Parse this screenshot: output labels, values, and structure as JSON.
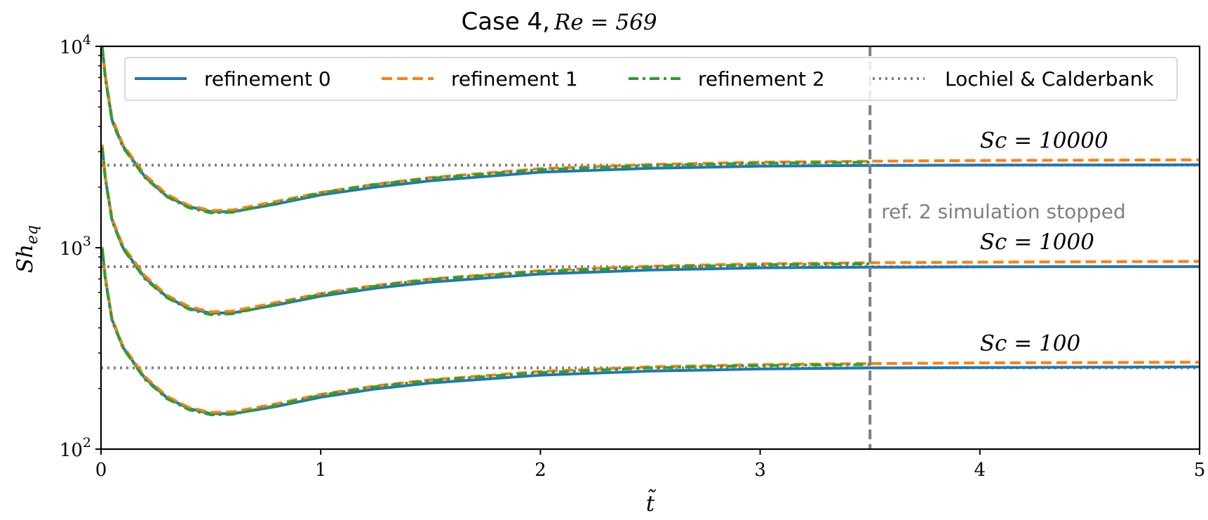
{
  "chart_data": {
    "type": "line",
    "title": "Case 4, Re = 569",
    "title_prefix": "Case 4, ",
    "title_math": "Re = 569",
    "xlabel": "t̃",
    "ylabel": "Sh_eq",
    "ylabel_main": "Sh",
    "ylabel_sub": "eq",
    "xlim": [
      0,
      5
    ],
    "ylim": [
      100,
      10000
    ],
    "yscale": "log",
    "grid": false,
    "legend_position": "top",
    "x_ticks": [
      {
        "value": 0,
        "label": "0"
      },
      {
        "value": 1,
        "label": "1"
      },
      {
        "value": 2,
        "label": "2"
      },
      {
        "value": 3,
        "label": "3"
      },
      {
        "value": 4,
        "label": "4"
      },
      {
        "value": 5,
        "label": "5"
      }
    ],
    "y_ticks": [
      {
        "value": 100,
        "base": "10",
        "exp": "2"
      },
      {
        "value": 1000,
        "base": "10",
        "exp": "3"
      },
      {
        "value": 10000,
        "base": "10",
        "exp": "4"
      }
    ],
    "series": [
      {
        "name": "refinement 0",
        "color": "#1f77b4",
        "style": "solid"
      },
      {
        "name": "refinement 1",
        "color": "#ff7f0e",
        "style": "dashed"
      },
      {
        "name": "refinement 2",
        "color": "#2ca02c",
        "style": "dashdot"
      },
      {
        "name": "Lochiel & Calderbank",
        "color": "#7f7f7f",
        "style": "dotted"
      }
    ],
    "groups": [
      {
        "label": "Sc = 10000",
        "reference": 2570,
        "x": [
          0.005,
          0.02,
          0.05,
          0.1,
          0.2,
          0.3,
          0.4,
          0.5,
          0.6,
          0.8,
          1.0,
          1.25,
          1.5,
          2.0,
          2.5,
          3.0,
          3.5,
          4.0,
          4.5,
          5.0
        ],
        "refinement_0": [
          10000,
          7000,
          4300,
          3200,
          2250,
          1800,
          1600,
          1510,
          1510,
          1650,
          1830,
          2000,
          2150,
          2370,
          2480,
          2540,
          2560,
          2570,
          2575,
          2580
        ],
        "refinement_1": [
          10000,
          7100,
          4400,
          3250,
          2300,
          1840,
          1620,
          1530,
          1540,
          1700,
          1880,
          2070,
          2230,
          2470,
          2590,
          2660,
          2690,
          2710,
          2720,
          2730
        ],
        "refinement_2": [
          10000,
          6900,
          4250,
          3150,
          2230,
          1790,
          1580,
          1490,
          1500,
          1670,
          1870,
          2060,
          2210,
          2440,
          2560,
          2630,
          2660
        ]
      },
      {
        "label": "Sc = 1000",
        "reference": 805,
        "x": [
          0.005,
          0.02,
          0.05,
          0.1,
          0.2,
          0.3,
          0.4,
          0.5,
          0.6,
          0.8,
          1.0,
          1.25,
          1.5,
          2.0,
          2.5,
          3.0,
          3.5,
          4.0,
          4.5,
          5.0
        ],
        "refinement_0": [
          3200,
          2200,
          1380,
          1000,
          710,
          570,
          500,
          473,
          475,
          520,
          575,
          630,
          675,
          740,
          775,
          795,
          800,
          803,
          805,
          806
        ],
        "refinement_1": [
          3250,
          2230,
          1400,
          1020,
          725,
          580,
          510,
          480,
          485,
          535,
          592,
          650,
          700,
          770,
          810,
          832,
          842,
          848,
          852,
          855
        ],
        "refinement_2": [
          3150,
          2180,
          1360,
          990,
          700,
          565,
          495,
          465,
          470,
          525,
          586,
          645,
          695,
          762,
          800,
          822,
          832
        ]
      },
      {
        "label": "Sc = 100",
        "reference": 253,
        "x": [
          0.005,
          0.02,
          0.05,
          0.1,
          0.2,
          0.3,
          0.4,
          0.5,
          0.6,
          0.8,
          1.0,
          1.25,
          1.5,
          2.0,
          2.5,
          3.0,
          3.5,
          4.0,
          4.5,
          5.0
        ],
        "refinement_0": [
          1000,
          700,
          440,
          320,
          225,
          180,
          159,
          150,
          150,
          163,
          181,
          199,
          213,
          233,
          244,
          250,
          253,
          254,
          255,
          256
        ],
        "refinement_1": [
          1010,
          710,
          445,
          325,
          229,
          183,
          161,
          152,
          153,
          168,
          187,
          206,
          221,
          243,
          256,
          263,
          266,
          268,
          269,
          270
        ],
        "refinement_2": [
          990,
          690,
          435,
          318,
          222,
          178,
          157,
          148,
          149,
          165,
          185,
          204,
          219,
          240,
          253,
          260,
          263
        ]
      }
    ],
    "annotations": {
      "stop_line_x": 3.5,
      "stop_text": "ref. 2 simulation stopped"
    }
  }
}
